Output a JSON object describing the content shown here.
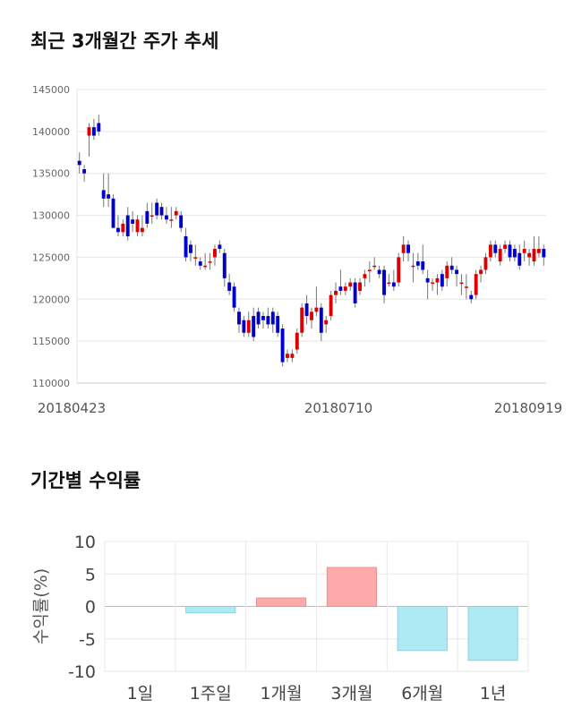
{
  "section1_title": "최근 3개월간 주가 추세",
  "section2_title": "기간별 수익률",
  "chart_data": [
    {
      "type": "candlestick",
      "title": "최근 3개월간 주가 추세",
      "ylim": [
        110000,
        145000
      ],
      "yticks": [
        110000,
        115000,
        120000,
        125000,
        130000,
        135000,
        140000,
        145000
      ],
      "xtick_labels": [
        "20180423",
        "20180710",
        "20180919"
      ],
      "grid": true,
      "colors": {
        "up": "#dd0000",
        "down": "#0000cc",
        "wick": "#777777"
      },
      "candles": [
        [
          136500,
          137500,
          135000,
          136000
        ],
        [
          135500,
          136000,
          134000,
          135000
        ],
        [
          139500,
          141000,
          137000,
          140500
        ],
        [
          140500,
          141500,
          139000,
          139500
        ],
        [
          141000,
          142000,
          139500,
          140000
        ],
        [
          133000,
          135000,
          131000,
          132000
        ],
        [
          132500,
          135000,
          131000,
          132000
        ],
        [
          132000,
          132500,
          128500,
          128500
        ],
        [
          128500,
          130000,
          127500,
          128000
        ],
        [
          128000,
          129500,
          127500,
          129000
        ],
        [
          130000,
          131000,
          127000,
          127500
        ],
        [
          129500,
          130500,
          128000,
          129000
        ],
        [
          128000,
          130000,
          127500,
          129500
        ],
        [
          128000,
          130000,
          127500,
          128500
        ],
        [
          130500,
          131500,
          128500,
          129000
        ],
        [
          130000,
          131500,
          129000,
          130000
        ],
        [
          131500,
          132000,
          129500,
          130000
        ],
        [
          131000,
          131500,
          129500,
          130000
        ],
        [
          130000,
          131000,
          129000,
          129500
        ],
        [
          129500,
          131000,
          128500,
          129500
        ],
        [
          130000,
          131000,
          129500,
          130500
        ],
        [
          130000,
          130500,
          128000,
          128500
        ],
        [
          127500,
          128500,
          124500,
          125000
        ],
        [
          126500,
          127000,
          124500,
          125500
        ],
        [
          125000,
          126500,
          124000,
          125000
        ],
        [
          124500,
          125000,
          123500,
          124000
        ],
        [
          124000,
          125500,
          123500,
          124000
        ],
        [
          124500,
          125500,
          123500,
          124500
        ],
        [
          125000,
          126500,
          124000,
          126000
        ],
        [
          126500,
          127000,
          125500,
          126000
        ],
        [
          125500,
          126000,
          121500,
          122500
        ],
        [
          122000,
          123000,
          120500,
          121000
        ],
        [
          121500,
          122000,
          118500,
          119000
        ],
        [
          118500,
          119000,
          116000,
          117000
        ],
        [
          117500,
          118000,
          115500,
          116000
        ],
        [
          116000,
          118500,
          115500,
          117500
        ],
        [
          118000,
          119000,
          115000,
          115500
        ],
        [
          118500,
          119000,
          116500,
          117000
        ],
        [
          118000,
          118500,
          116500,
          117500
        ],
        [
          118000,
          119000,
          116500,
          117000
        ],
        [
          118500,
          119000,
          116000,
          117000
        ],
        [
          118000,
          118500,
          115500,
          116000
        ],
        [
          116500,
          117000,
          112000,
          112500
        ],
        [
          113000,
          114000,
          112500,
          113500
        ],
        [
          113000,
          114000,
          112500,
          113500
        ],
        [
          114000,
          116500,
          113500,
          116000
        ],
        [
          116000,
          119500,
          115500,
          119000
        ],
        [
          119500,
          120500,
          117000,
          118000
        ],
        [
          117500,
          119000,
          116500,
          118500
        ],
        [
          118500,
          121500,
          118000,
          119000
        ],
        [
          119000,
          119500,
          115000,
          116000
        ],
        [
          117000,
          118000,
          116000,
          117500
        ],
        [
          118000,
          121000,
          117500,
          120500
        ],
        [
          120500,
          122000,
          119500,
          121000
        ],
        [
          121500,
          123500,
          120500,
          121000
        ],
        [
          121000,
          122000,
          120500,
          121500
        ],
        [
          121500,
          122500,
          121000,
          122000
        ],
        [
          122000,
          122500,
          119000,
          119500
        ],
        [
          121000,
          122500,
          120500,
          122000
        ],
        [
          122500,
          123500,
          121500,
          123000
        ],
        [
          123500,
          124500,
          122000,
          123500
        ],
        [
          124000,
          125000,
          123500,
          124000
        ],
        [
          123500,
          124000,
          122500,
          123000
        ],
        [
          123500,
          124000,
          119500,
          120500
        ],
        [
          122000,
          123000,
          121500,
          122000
        ],
        [
          122000,
          123500,
          121000,
          121500
        ],
        [
          122000,
          125500,
          121500,
          125000
        ],
        [
          125500,
          127500,
          124500,
          126500
        ],
        [
          126500,
          127000,
          124500,
          125500
        ],
        [
          124000,
          125500,
          122000,
          124000
        ],
        [
          124500,
          125500,
          123500,
          124000
        ],
        [
          124500,
          126500,
          123000,
          123500
        ],
        [
          122500,
          123500,
          120000,
          122000
        ],
        [
          122000,
          122500,
          121000,
          122000
        ],
        [
          122000,
          123000,
          120500,
          122500
        ],
        [
          123000,
          123500,
          121000,
          121500
        ],
        [
          122500,
          124500,
          121500,
          124000
        ],
        [
          124000,
          125000,
          123000,
          123500
        ],
        [
          123500,
          124000,
          121500,
          123000
        ],
        [
          122000,
          123000,
          120500,
          122000
        ],
        [
          121500,
          123000,
          120000,
          121500
        ],
        [
          120500,
          121000,
          119500,
          120000
        ],
        [
          120500,
          123500,
          120000,
          123000
        ],
        [
          123000,
          124000,
          122000,
          123500
        ],
        [
          123500,
          125500,
          123000,
          125000
        ],
        [
          125000,
          127000,
          124500,
          126500
        ],
        [
          126500,
          127000,
          125000,
          125500
        ],
        [
          124500,
          126500,
          124000,
          126000
        ],
        [
          126000,
          127000,
          125500,
          126500
        ],
        [
          126500,
          127000,
          124500,
          125000
        ],
        [
          126000,
          126500,
          124500,
          125000
        ],
        [
          125500,
          126500,
          123500,
          124000
        ],
        [
          125500,
          127000,
          124500,
          126000
        ],
        [
          125000,
          126000,
          124000,
          125500
        ],
        [
          124500,
          127500,
          124000,
          126000
        ],
        [
          125500,
          127500,
          125000,
          126000
        ],
        [
          126000,
          126500,
          124000,
          125000
        ]
      ]
    },
    {
      "type": "bar",
      "title": "기간별 수익률",
      "categories": [
        "1일",
        "1주일",
        "1개월",
        "3개월",
        "6개월",
        "1년"
      ],
      "values": [
        0,
        -1.0,
        1.3,
        6.0,
        -6.8,
        -8.3
      ],
      "ylabel": "수익률(%)",
      "ylim": [
        -10,
        10
      ],
      "yticks": [
        10,
        5,
        0,
        -5,
        -10
      ],
      "colors": {
        "positive": "#ffaaaa",
        "negative": "#aeeaf4"
      },
      "grid": true
    }
  ]
}
